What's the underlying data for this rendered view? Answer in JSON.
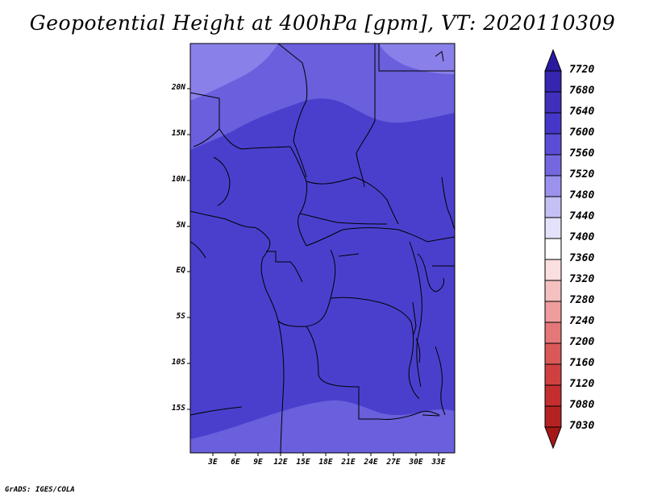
{
  "title": "Geopotential Height at 400hPa [gpm], VT: 2020110309",
  "credit": "GrADS: IGES/COLA",
  "map": {
    "y_ticks": [
      "20N",
      "15N",
      "10N",
      "5N",
      "EQ",
      "5S",
      "10S",
      "15S"
    ],
    "x_ticks": [
      "3E",
      "6E",
      "9E",
      "12E",
      "15E",
      "18E",
      "21E",
      "24E",
      "27E",
      "30E",
      "33E"
    ]
  },
  "colorbar": {
    "labels": [
      "7720",
      "7680",
      "7640",
      "7600",
      "7560",
      "7520",
      "7480",
      "7440",
      "7400",
      "7360",
      "7320",
      "7280",
      "7240",
      "7200",
      "7160",
      "7120",
      "7080",
      "7030"
    ],
    "colors": [
      "#2a1aa0",
      "#3426ae",
      "#3e30bb",
      "#4538c8",
      "#5a4ed6",
      "#7468e0",
      "#9a92ec",
      "#c3c0f4",
      "#e3e2fa",
      "#ffffff",
      "#fbdede",
      "#f5c0c0",
      "#ef9c9c",
      "#e47878",
      "#da5858",
      "#cf4040",
      "#c42e2e",
      "#b52222",
      "#a51818"
    ]
  },
  "fill_colors": {
    "band_7560": "#6a5fdc",
    "band_7520": "#8a80ea",
    "band_7600": "#4a3fcd",
    "band_7640": "#4539c6"
  }
}
